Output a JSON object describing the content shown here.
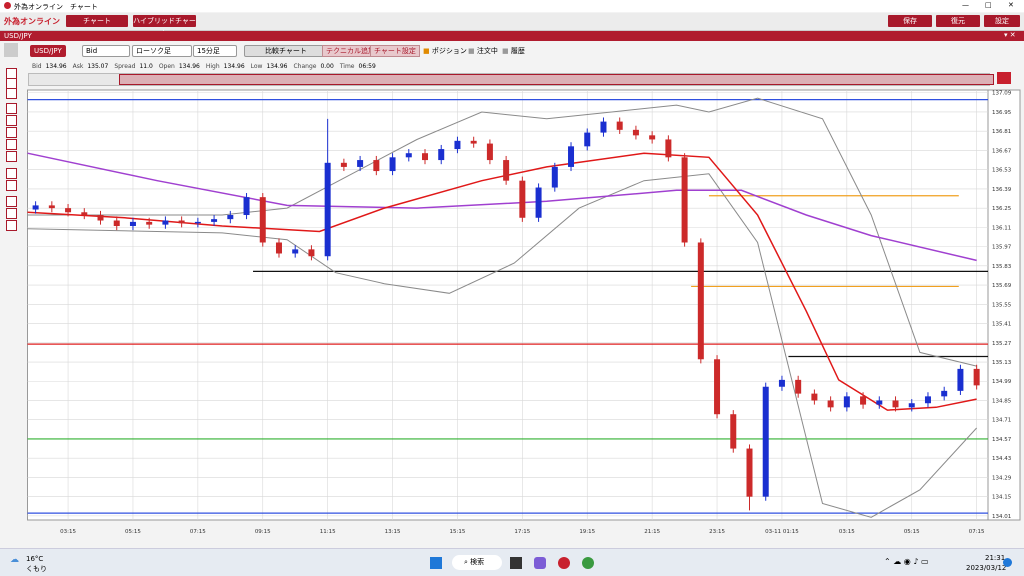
{
  "window": {
    "title": "外為オンライン　チャート"
  },
  "toolbar": {
    "logo": "外為オンライン",
    "buttons": [
      "チャート",
      "ハイブリッドチャート"
    ],
    "right_buttons": [
      "保存",
      "復元",
      "設定"
    ]
  },
  "tab": "USD/JPY",
  "controls": {
    "pair": "USD/JPY",
    "price": "Bid",
    "chart_type": "ローソク足",
    "interval": "15分足",
    "compare": "比較チャート",
    "add_technical": "テクニカル追加",
    "settings": "チャート設定",
    "checks": [
      "ポジション",
      "注文中",
      "履歴"
    ]
  },
  "info": [
    [
      "Bid",
      "134.96"
    ],
    [
      "Ask",
      "135.07"
    ],
    [
      "Spread",
      "11.0"
    ],
    [
      "Open",
      "134.96"
    ],
    [
      "High",
      "134.96"
    ],
    [
      "Low",
      "134.96"
    ],
    [
      "Change",
      "0.00"
    ],
    [
      "Time",
      "06:59"
    ]
  ],
  "chart_data": {
    "type": "candlestick",
    "up_color": "#1a2fd0",
    "down_color": "#cc2a2a",
    "xlim": [
      0,
      29.6
    ],
    "ylim": [
      133.98,
      137.11
    ],
    "grid": true,
    "xticks": [
      {
        "value": 1.25,
        "label": "03:15"
      },
      {
        "value": 3.25,
        "label": "05:15"
      },
      {
        "value": 5.25,
        "label": "07:15"
      },
      {
        "value": 7.25,
        "label": "09:15"
      },
      {
        "value": 9.25,
        "label": "11:15"
      },
      {
        "value": 11.25,
        "label": "13:15"
      },
      {
        "value": 13.25,
        "label": "15:15"
      },
      {
        "value": 15.25,
        "label": "17:15"
      },
      {
        "value": 17.25,
        "label": "19:15"
      },
      {
        "value": 19.25,
        "label": "21:15"
      },
      {
        "value": 21.25,
        "label": "23:15"
      },
      {
        "value": 23.25,
        "label": "03-11 01:15"
      },
      {
        "value": 25.25,
        "label": "03:15"
      },
      {
        "value": 27.25,
        "label": "05:15"
      },
      {
        "value": 29.25,
        "label": "07:15"
      }
    ],
    "yticks": [
      137.09,
      136.95,
      136.81,
      136.67,
      136.53,
      136.39,
      136.25,
      136.11,
      135.97,
      135.83,
      135.69,
      135.55,
      135.41,
      135.27,
      135.13,
      134.99,
      134.85,
      134.71,
      134.57,
      134.43,
      134.29,
      134.15,
      134.01
    ],
    "x": [
      0.25,
      0.75,
      1.25,
      1.75,
      2.25,
      2.75,
      3.25,
      3.75,
      4.25,
      4.75,
      5.25,
      5.75,
      6.25,
      6.75,
      7.25,
      7.75,
      8.25,
      8.75,
      9.25,
      9.75,
      10.25,
      10.75,
      11.25,
      11.75,
      12.25,
      12.75,
      13.25,
      13.75,
      14.25,
      14.75,
      15.25,
      15.75,
      16.25,
      16.75,
      17.25,
      17.75,
      18.25,
      18.75,
      19.25,
      19.75,
      20.25,
      20.75,
      21.25,
      21.75,
      22.25,
      22.75,
      23.25,
      23.75,
      24.25,
      24.75,
      25.25,
      25.75,
      26.25,
      26.75,
      27.25,
      27.75,
      28.25,
      28.75,
      29.25
    ],
    "open": [
      136.24,
      136.27,
      136.25,
      136.22,
      136.2,
      136.16,
      136.12,
      136.15,
      136.13,
      136.16,
      136.14,
      136.15,
      136.17,
      136.2,
      136.33,
      136.0,
      135.92,
      135.95,
      135.9,
      136.58,
      136.55,
      136.6,
      136.52,
      136.62,
      136.65,
      136.6,
      136.68,
      136.74,
      136.72,
      136.6,
      136.45,
      136.18,
      136.4,
      136.55,
      136.7,
      136.8,
      136.88,
      136.82,
      136.78,
      136.75,
      136.62,
      136.0,
      135.15,
      134.75,
      134.5,
      134.15,
      134.95,
      135.0,
      134.9,
      134.85,
      134.8,
      134.88,
      134.82,
      134.85,
      134.8,
      134.83,
      134.88,
      134.92,
      135.08
    ],
    "high": [
      136.3,
      136.3,
      136.28,
      136.25,
      136.23,
      136.19,
      136.18,
      136.18,
      136.19,
      136.19,
      136.18,
      136.2,
      136.23,
      136.36,
      136.36,
      136.03,
      135.98,
      135.98,
      136.9,
      136.61,
      136.63,
      136.63,
      136.65,
      136.68,
      136.68,
      136.71,
      136.77,
      136.77,
      136.75,
      136.63,
      136.48,
      136.43,
      136.58,
      136.73,
      136.83,
      136.91,
      136.91,
      136.85,
      136.81,
      136.78,
      136.65,
      136.03,
      135.18,
      134.78,
      134.53,
      134.98,
      135.03,
      135.03,
      134.93,
      134.88,
      134.91,
      134.91,
      134.88,
      134.88,
      134.86,
      134.91,
      134.95,
      135.11,
      135.11
    ],
    "low": [
      136.21,
      136.22,
      136.19,
      136.17,
      136.13,
      136.09,
      136.09,
      136.1,
      136.1,
      136.11,
      136.11,
      136.12,
      136.14,
      136.17,
      135.97,
      135.89,
      135.89,
      135.87,
      135.87,
      136.52,
      136.52,
      136.49,
      136.49,
      136.59,
      136.57,
      136.57,
      136.65,
      136.69,
      136.57,
      136.42,
      136.15,
      136.15,
      136.37,
      136.52,
      136.67,
      136.77,
      136.79,
      136.75,
      136.72,
      136.59,
      135.97,
      135.12,
      134.72,
      134.47,
      134.05,
      134.12,
      134.92,
      134.87,
      134.82,
      134.77,
      134.77,
      134.79,
      134.79,
      134.77,
      134.77,
      134.8,
      134.85,
      134.89,
      134.93
    ],
    "close": [
      136.27,
      136.25,
      136.22,
      136.2,
      136.16,
      136.12,
      136.15,
      136.13,
      136.16,
      136.14,
      136.15,
      136.17,
      136.2,
      136.33,
      136.0,
      135.92,
      135.95,
      135.9,
      136.58,
      136.55,
      136.6,
      136.52,
      136.62,
      136.65,
      136.6,
      136.68,
      136.74,
      136.72,
      136.6,
      136.45,
      136.18,
      136.4,
      136.55,
      136.7,
      136.8,
      136.88,
      136.82,
      136.78,
      136.75,
      136.62,
      136.0,
      135.15,
      134.75,
      134.5,
      134.15,
      134.95,
      135.0,
      134.9,
      134.85,
      134.8,
      134.88,
      134.82,
      134.85,
      134.8,
      134.83,
      134.88,
      134.92,
      135.08,
      134.96
    ],
    "lines": [
      {
        "color": "#8a8a8a",
        "width": 1,
        "x": [
          0,
          6,
          8,
          10,
          12,
          14,
          16,
          18,
          20,
          21,
          22.5,
          24.5,
          26,
          27.5,
          29.25
        ],
        "values": [
          136.2,
          136.2,
          136.25,
          136.5,
          136.75,
          136.95,
          136.9,
          136.95,
          137.0,
          136.95,
          137.05,
          136.9,
          136.2,
          135.2,
          135.1
        ]
      },
      {
        "color": "#8a8a8a",
        "width": 1,
        "x": [
          0,
          6,
          8,
          9.5,
          11,
          13,
          15,
          17,
          19,
          21,
          22.5,
          24.5,
          26,
          27.5,
          29.25
        ],
        "values": [
          136.1,
          136.07,
          136.02,
          135.78,
          135.7,
          135.63,
          135.85,
          136.25,
          136.45,
          136.5,
          136.0,
          134.1,
          134.0,
          134.2,
          134.65
        ]
      },
      {
        "color": "#a040d0",
        "width": 1.5,
        "x": [
          0,
          4,
          8,
          12,
          16,
          20,
          22,
          24,
          26,
          29.25
        ],
        "values": [
          136.65,
          136.45,
          136.27,
          136.25,
          136.3,
          136.38,
          136.38,
          136.2,
          136.05,
          135.87
        ]
      },
      {
        "color": "#e01818",
        "width": 1.5,
        "x": [
          0,
          3,
          6,
          9,
          11,
          14,
          16,
          19,
          21,
          22.5,
          24,
          25,
          26.5,
          28,
          29.25
        ],
        "values": [
          136.22,
          136.18,
          136.12,
          136.08,
          136.25,
          136.45,
          136.55,
          136.65,
          136.62,
          136.2,
          135.5,
          135.0,
          134.78,
          134.8,
          134.86
        ]
      }
    ],
    "hlines": [
      {
        "value": 137.04,
        "color": "#3050e0",
        "x": [
          0,
          29.6
        ]
      },
      {
        "value": 134.03,
        "color": "#3050e0",
        "x": [
          0,
          29.6
        ]
      },
      {
        "value": 135.26,
        "color": "#e02020",
        "x": [
          0,
          29.6
        ]
      },
      {
        "value": 134.57,
        "color": "#30b030",
        "x": [
          0,
          29.6
        ]
      },
      {
        "value": 136.34,
        "color": "#f0a020",
        "x": [
          21.0,
          28.7
        ]
      },
      {
        "value": 135.68,
        "color": "#f0a020",
        "x": [
          20.45,
          28.7
        ]
      },
      {
        "value": 135.79,
        "color": "#111111",
        "x": [
          6.95,
          29.6
        ]
      },
      {
        "value": 135.17,
        "color": "#111111",
        "x": [
          23.45,
          29.6
        ]
      }
    ]
  },
  "taskbar": {
    "temp": "16°C",
    "weather": "くもり",
    "search": "検索",
    "time": "21:31",
    "date": "2023/03/12"
  }
}
